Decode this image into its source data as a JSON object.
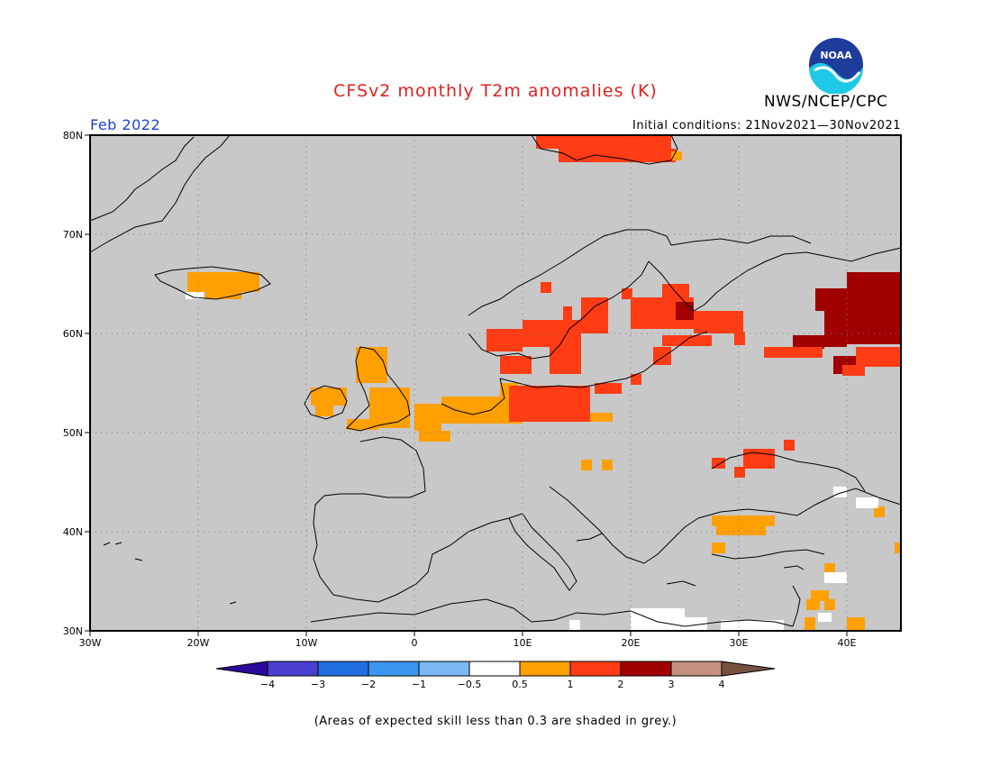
{
  "header": {
    "title": "CFSv2 monthly T2m anomalies (K)",
    "agency": "NWS/NCEP/CPC",
    "logo_text": "NOAA",
    "month": "Feb 2022",
    "initial_conditions": "Initial conditions: 21Nov2021—30Nov2021"
  },
  "map": {
    "background_color": "#c8c8c8",
    "lon_labels": [
      "30W",
      "20W",
      "10W",
      "0",
      "10E",
      "20E",
      "30E",
      "40E"
    ],
    "lat_labels": [
      "80N",
      "70N",
      "60N",
      "50N",
      "40N",
      "30N"
    ]
  },
  "colorbar": {
    "labels": [
      "−4",
      "−3",
      "−2",
      "−1",
      "−0.5",
      "0.5",
      "1",
      "2",
      "3",
      "4"
    ],
    "colors": [
      "#2a0a9c",
      "#4a3fd0",
      "#1f6fe0",
      "#3c96f0",
      "#7ab8f5",
      "#ffffff",
      "#ffa000",
      "#ff3c14",
      "#a00000",
      "#c49080",
      "#785040"
    ]
  },
  "footnote": "(Areas of expected skill less than 0.3 are shaded in grey.)"
}
